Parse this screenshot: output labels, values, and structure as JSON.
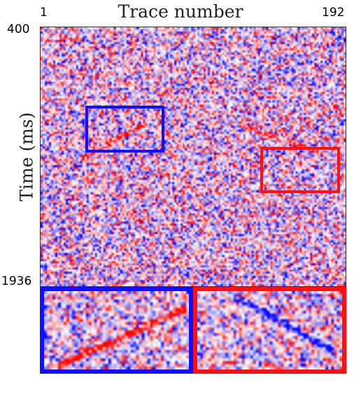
{
  "figure": {
    "title": "Trace number",
    "y_axis_label": "Time (ms)",
    "trace_first": "1",
    "trace_last": "192",
    "time_start": "400",
    "time_end": "1936"
  },
  "colors": {
    "positive": "#ff1010",
    "negative": "#1010ff",
    "background": "#ffffff"
  },
  "highlight_boxes": [
    {
      "name": "blue-box",
      "color": "#1010ff"
    },
    {
      "name": "red-box",
      "color": "#ff1010"
    }
  ]
}
